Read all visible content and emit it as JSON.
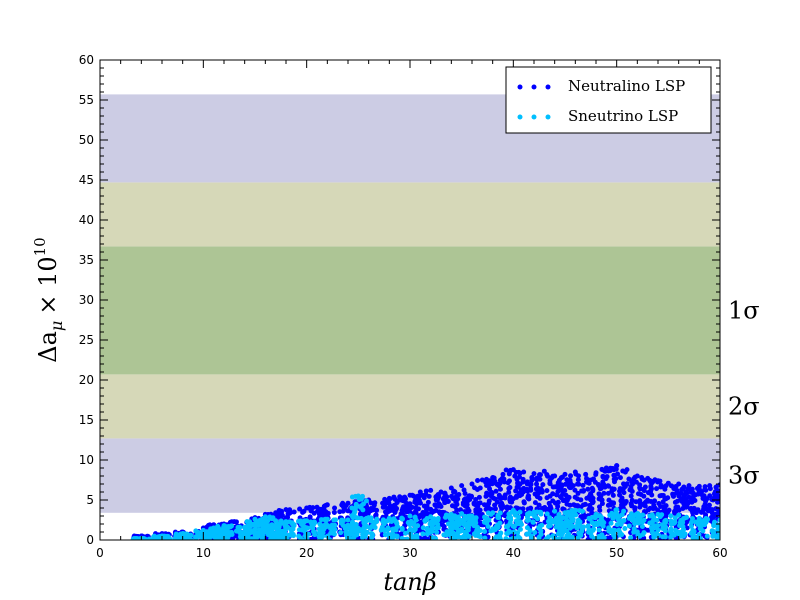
{
  "chart_data": {
    "type": "scatter",
    "title": "",
    "xlabel": "tanβ",
    "ylabel_main": "Δa",
    "ylabel_sub": "μ",
    "ylabel_times": "× 10",
    "ylabel_exp": "10",
    "xlim": [
      0,
      60
    ],
    "ylim": [
      0,
      60
    ],
    "xticks": [
      0,
      10,
      20,
      30,
      40,
      50,
      60
    ],
    "yticks": [
      0,
      5,
      10,
      15,
      20,
      25,
      30,
      35,
      40,
      45,
      50,
      55,
      60
    ],
    "grid": false,
    "legend_position": "top-right",
    "bands": [
      {
        "label": "3σ",
        "y_low": 3.4,
        "y_high": 12.7,
        "color": "#cccce4"
      },
      {
        "label": "2σ",
        "y_low": 12.7,
        "y_high": 20.7,
        "color": "#d6d8b8"
      },
      {
        "label": "1σ",
        "y_low": 20.7,
        "y_high": 36.7,
        "color": "#adc595"
      },
      {
        "label": "",
        "y_low": 36.7,
        "y_high": 44.7,
        "color": "#d6d8b8"
      },
      {
        "label": "",
        "y_low": 44.7,
        "y_high": 55.7,
        "color": "#cccce4"
      }
    ],
    "series": [
      {
        "name": "Neutralino LSP",
        "color": "#0000ff",
        "points": [
          [
            4,
            0.5
          ],
          [
            6,
            0.8
          ],
          [
            8,
            1.0
          ],
          [
            10,
            1.5
          ],
          [
            11,
            1.9
          ],
          [
            12,
            2.0
          ],
          [
            13,
            2.3
          ],
          [
            15,
            2.8
          ],
          [
            16,
            3.2
          ],
          [
            17,
            3.4
          ],
          [
            18,
            3.8
          ],
          [
            20,
            4.0
          ],
          [
            21,
            4.1
          ],
          [
            22,
            4.4
          ],
          [
            24,
            4.6
          ],
          [
            25,
            4.9
          ],
          [
            26,
            5.0
          ],
          [
            28,
            5.2
          ],
          [
            29,
            5.4
          ],
          [
            30,
            5.6
          ],
          [
            31,
            6.0
          ],
          [
            32,
            6.2
          ],
          [
            33,
            6.0
          ],
          [
            34,
            6.5
          ],
          [
            35,
            6.8
          ],
          [
            36,
            7.0
          ],
          [
            37,
            7.5
          ],
          [
            38,
            7.8
          ],
          [
            39,
            8.2
          ],
          [
            40,
            8.8
          ],
          [
            41,
            8.5
          ],
          [
            42,
            8.3
          ],
          [
            43,
            8.6
          ],
          [
            44,
            8.0
          ],
          [
            45,
            8.2
          ],
          [
            46,
            8.5
          ],
          [
            47,
            8.2
          ],
          [
            48,
            8.4
          ],
          [
            49,
            9.0
          ],
          [
            50,
            9.3
          ],
          [
            51,
            8.8
          ],
          [
            52,
            8.0
          ],
          [
            53,
            7.7
          ],
          [
            54,
            7.4
          ],
          [
            55,
            7.1
          ],
          [
            56,
            7.0
          ],
          [
            57,
            6.8
          ],
          [
            58,
            6.7
          ],
          [
            59,
            6.8
          ],
          [
            60,
            6.9
          ]
        ]
      },
      {
        "name": "Sneutrino LSP",
        "color": "#00bfff",
        "points": [
          [
            4,
            0.2
          ],
          [
            6,
            0.5
          ],
          [
            8,
            0.8
          ],
          [
            10,
            1.2
          ],
          [
            11,
            1.5
          ],
          [
            12,
            1.8
          ],
          [
            14,
            1.6
          ],
          [
            15,
            2.6
          ],
          [
            16,
            2.9
          ],
          [
            17,
            2.4
          ],
          [
            18,
            2.3
          ],
          [
            20,
            2.4
          ],
          [
            22,
            2.6
          ],
          [
            24,
            2.5
          ],
          [
            25,
            5.5
          ],
          [
            26,
            2.8
          ],
          [
            28,
            2.7
          ],
          [
            30,
            3.0
          ],
          [
            32,
            2.9
          ],
          [
            34,
            3.2
          ],
          [
            35,
            3.3
          ],
          [
            36,
            3.0
          ],
          [
            38,
            3.4
          ],
          [
            40,
            3.7
          ],
          [
            42,
            3.5
          ],
          [
            44,
            3.6
          ],
          [
            45,
            3.4
          ],
          [
            46,
            3.7
          ],
          [
            48,
            3.2
          ],
          [
            50,
            3.8
          ],
          [
            52,
            3.3
          ],
          [
            54,
            3.2
          ],
          [
            56,
            3.1
          ],
          [
            58,
            2.7
          ],
          [
            60,
            2.5
          ]
        ]
      }
    ]
  }
}
